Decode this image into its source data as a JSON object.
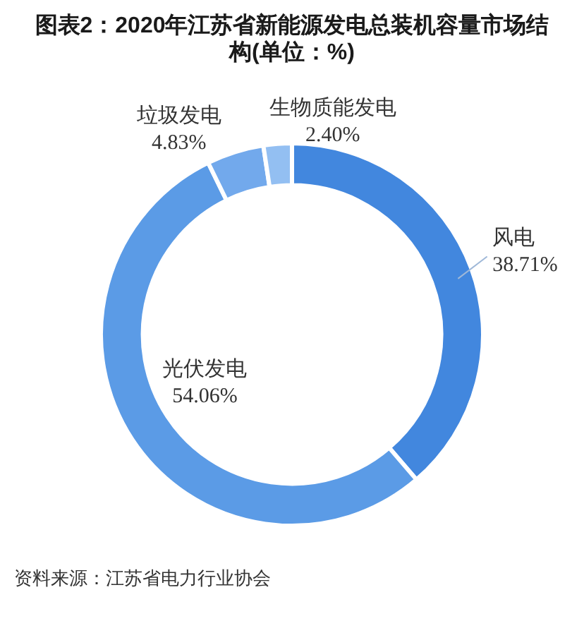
{
  "chart_data": {
    "type": "donut",
    "title": "图表2：2020年江苏省新能源发电总装机容量市场结构(单位：%)",
    "categories": [
      "风电",
      "光伏发电",
      "垃圾发电",
      "生物质能发电"
    ],
    "values": [
      38.71,
      54.06,
      4.83,
      2.4
    ],
    "value_labels": [
      "38.71%",
      "54.06%",
      "4.83%",
      "2.40%"
    ],
    "colors": [
      "#4287de",
      "#5b9be6",
      "#72a9ec",
      "#93bff2"
    ],
    "legend": false,
    "annotations": [
      "资料来源：江苏省电力行业协会"
    ]
  }
}
